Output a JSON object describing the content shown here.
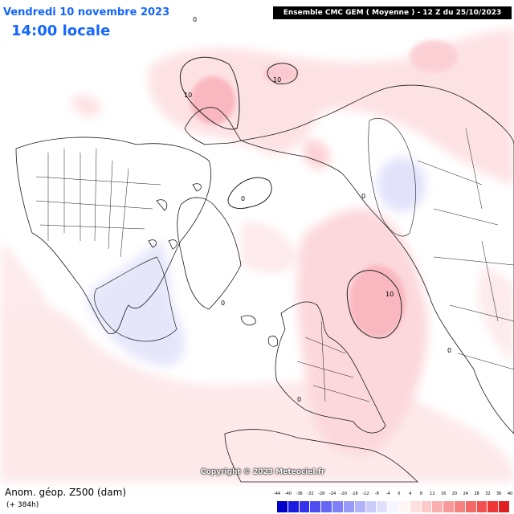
{
  "header": {
    "date": "Vendredi 10 novembre 2023",
    "time": "14:00 locale",
    "run": "Ensemble CMC GEM  ( Moyenne )  -  12 Z du 25/10/2023"
  },
  "footer": {
    "title": "Anom. géop. Z500 (dam)",
    "lead": "(+ 384h)",
    "copyright": "Copyright © 2023 Meteociel.fr"
  },
  "contours": {
    "pos_label": "10",
    "zero_label": "0"
  },
  "legend": {
    "labels": [
      "-44",
      "-40",
      "-36",
      "-32",
      "-28",
      "-24",
      "-20",
      "-16",
      "-12",
      "-8",
      "-4",
      "0",
      "4",
      "8",
      "12",
      "16",
      "20",
      "24",
      "28",
      "32",
      "36",
      "40"
    ],
    "colors": [
      "#0000c8",
      "#1a1ae0",
      "#3333ee",
      "#4d4df2",
      "#6666f5",
      "#8080f7",
      "#9999f9",
      "#b3b3fb",
      "#ccccfc",
      "#e0e0fd",
      "#f5f5ff",
      "#fff5f5",
      "#fde0e0",
      "#fcc8c8",
      "#fbb0b0",
      "#f99898",
      "#f78080",
      "#f56868",
      "#f25050",
      "#ee3838",
      "#e02020"
    ]
  }
}
